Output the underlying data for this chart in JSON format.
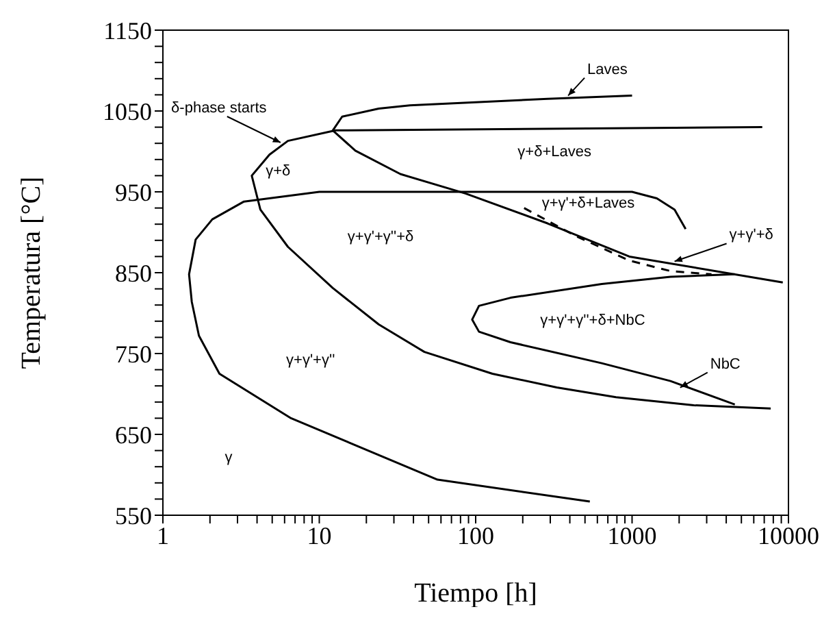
{
  "chart_data": {
    "type": "line",
    "xlabel": "Tiempo [h]",
    "ylabel": "Temperatura [°C]",
    "log": "x",
    "xlim": [
      1,
      10000
    ],
    "xticks": [
      1,
      {
        "value": 2,
        "label": null
      },
      {
        "value": 3,
        "label": null
      },
      {
        "value": 4,
        "label": null
      },
      {
        "value": 5,
        "label": null
      },
      {
        "value": 6,
        "label": null
      },
      {
        "value": 7,
        "label": null
      },
      {
        "value": 8,
        "label": null
      },
      {
        "value": 9,
        "label": null
      },
      10,
      {
        "value": 20,
        "label": null
      },
      {
        "value": 30,
        "label": null
      },
      {
        "value": 40,
        "label": null
      },
      {
        "value": 50,
        "label": null
      },
      {
        "value": 60,
        "label": null
      },
      {
        "value": 70,
        "label": null
      },
      {
        "value": 80,
        "label": null
      },
      {
        "value": 90,
        "label": null
      },
      100,
      {
        "value": 200,
        "label": null
      },
      {
        "value": 300,
        "label": null
      },
      {
        "value": 400,
        "label": null
      },
      {
        "value": 500,
        "label": null
      },
      {
        "value": 600,
        "label": null
      },
      {
        "value": 700,
        "label": null
      },
      {
        "value": 800,
        "label": null
      },
      {
        "value": 900,
        "label": null
      },
      1000,
      {
        "value": 2000,
        "label": null
      },
      {
        "value": 3000,
        "label": null
      },
      {
        "value": 4000,
        "label": null
      },
      {
        "value": 5000,
        "label": null
      },
      {
        "value": 6000,
        "label": null
      },
      {
        "value": 7000,
        "label": null
      },
      {
        "value": 8000,
        "label": null
      },
      {
        "value": 9000,
        "label": null
      },
      10000
    ],
    "ylim": [
      550,
      1150
    ],
    "yticks": [
      550,
      {
        "value": 570,
        "label": null
      },
      {
        "value": 590,
        "label": null
      },
      {
        "value": 610,
        "label": null
      },
      {
        "value": 630,
        "label": null
      },
      650,
      {
        "value": 670,
        "label": null
      },
      {
        "value": 690,
        "label": null
      },
      {
        "value": 710,
        "label": null
      },
      {
        "value": 730,
        "label": null
      },
      750,
      {
        "value": 770,
        "label": null
      },
      {
        "value": 790,
        "label": null
      },
      {
        "value": 810,
        "label": null
      },
      {
        "value": 830,
        "label": null
      },
      850,
      {
        "value": 870,
        "label": null
      },
      {
        "value": 890,
        "label": null
      },
      {
        "value": 910,
        "label": null
      },
      {
        "value": 930,
        "label": null
      },
      950,
      {
        "value": 970,
        "label": null
      },
      {
        "value": 990,
        "label": null
      },
      {
        "value": 1010,
        "label": null
      },
      {
        "value": 1030,
        "label": null
      },
      1050,
      {
        "value": 1070,
        "label": null
      },
      {
        "value": 1090,
        "label": null
      },
      {
        "value": 1110,
        "label": null
      },
      {
        "value": 1130,
        "label": null
      },
      1150
    ],
    "grid": false,
    "marker": "none",
    "series": [
      {
        "color": "#000000",
        "line_style": "solid",
        "x": [
          537,
          57,
          6.6,
          2.3,
          1.7,
          1.53,
          1.47,
          1.62,
          2.07,
          3.3,
          10,
          100,
          1000,
          1440,
          1870,
          2200
        ],
        "values": [
          567,
          594,
          670,
          725,
          772,
          814,
          848,
          891,
          916,
          938,
          950,
          950,
          950,
          942,
          928,
          904
        ]
      },
      {
        "color": "#000000",
        "line_style": "solid",
        "x": [
          6800,
          12.7,
          6.3,
          4.8,
          3.7,
          4.2,
          6.3,
          12.2,
          24,
          47,
          128,
          330,
          790,
          2480,
          7700
        ],
        "values": [
          1030,
          1026,
          1013,
          996,
          970,
          928,
          882,
          831,
          786,
          752,
          725,
          708,
          696,
          686,
          682
        ]
      },
      {
        "color": "#000000",
        "line_style": "solid",
        "x": [
          1000,
          288,
          38,
          24,
          14,
          12.2,
          17,
          33,
          86,
          288,
          960,
          9200
        ],
        "values": [
          1069,
          1065,
          1057,
          1053,
          1043,
          1026,
          1001,
          972,
          948,
          911,
          870,
          838
        ]
      },
      {
        "color": "#000000",
        "line_style": "solid",
        "x": [
          4540,
          1760,
          640,
          167,
          105,
          95,
          105,
          167,
          640,
          1760,
          4540
        ],
        "values": [
          848,
          845,
          836,
          819,
          809,
          792,
          777,
          764,
          738,
          716,
          687
        ]
      },
      {
        "color": "#000000",
        "line_style": "dashed",
        "x": [
          204,
          430,
          960,
          1760,
          3220
        ],
        "values": [
          930,
          896,
          865,
          852,
          848
        ]
      }
    ],
    "annotations": [
      {
        "text": "Laves",
        "x": 390,
        "y": 1069
      },
      {
        "text": "δ-phase starts",
        "x": 5.65,
        "y": 1011
      },
      {
        "text": "NbC",
        "x": 2030,
        "y": 708
      },
      {
        "text": "γ+γ'+δ",
        "x": 1870,
        "y": 864
      },
      "γ+δ",
      "γ+δ+Laves",
      "γ+γ'+γ''+δ",
      "γ+γ'+δ+Laves",
      "γ+γ'+γ''",
      "γ+γ'+γ''+δ+NbC",
      "γ"
    ]
  }
}
